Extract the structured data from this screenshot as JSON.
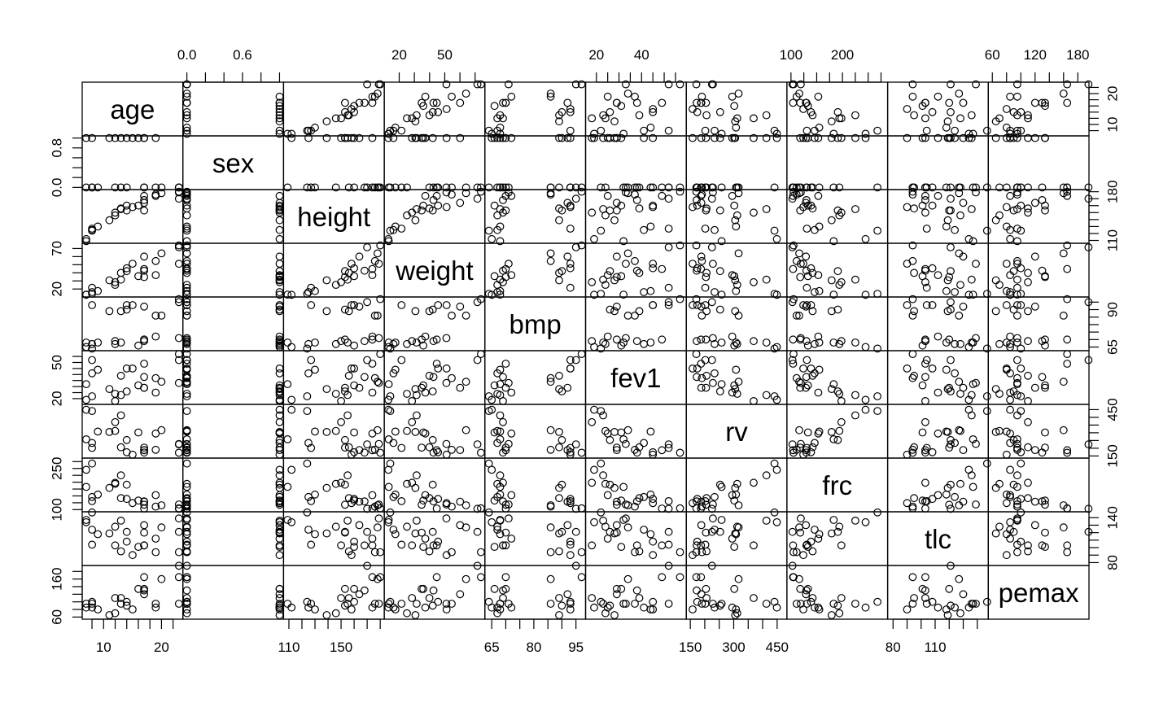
{
  "chart_data": {
    "type": "scatter",
    "layout": "scatterplot-matrix",
    "variables": [
      {
        "name": "age",
        "range": [
          7,
          23
        ],
        "ticks": [
          10,
          20
        ],
        "tick_labels": [
          "10",
          "20"
        ],
        "minor_ticks": [
          8,
          10,
          12,
          14,
          16,
          18,
          20,
          22
        ]
      },
      {
        "name": "sex",
        "range": [
          0,
          1
        ],
        "ticks": [
          0.0,
          0.6
        ],
        "tick_labels": [
          "0.0",
          "0.6"
        ],
        "left_ticks": [
          0.0,
          0.8
        ],
        "left_tick_labels": [
          "0.0",
          "0.8"
        ],
        "minor_ticks": [
          0,
          0.2,
          0.4,
          0.6,
          0.8,
          1.0
        ]
      },
      {
        "name": "height",
        "range": [
          109,
          180
        ],
        "ticks": [
          110,
          150
        ],
        "tick_labels": [
          "110",
          "150"
        ],
        "right_ticks": [
          110,
          180
        ],
        "right_tick_labels": [
          "110",
          "180"
        ],
        "minor_ticks": [
          110,
          120,
          130,
          140,
          150,
          160,
          170,
          180
        ]
      },
      {
        "name": "weight",
        "range": [
          12.8,
          73.8
        ],
        "ticks": [
          20,
          50
        ],
        "tick_labels": [
          "20",
          "50"
        ],
        "left_ticks": [
          20,
          70
        ],
        "left_tick_labels": [
          "20",
          "70"
        ],
        "minor_ticks": [
          20,
          30,
          40,
          50,
          60,
          70
        ]
      },
      {
        "name": "bmp",
        "range": [
          64,
          97
        ],
        "ticks": [
          65,
          80,
          95
        ],
        "tick_labels": [
          "65",
          "80",
          "95"
        ],
        "right_ticks": [
          65,
          90
        ],
        "right_tick_labels": [
          "65",
          "90"
        ],
        "minor_ticks": [
          65,
          70,
          75,
          80,
          85,
          90,
          95
        ]
      },
      {
        "name": "fev1",
        "range": [
          17,
          58
        ],
        "ticks": [
          20,
          40
        ],
        "tick_labels": [
          "20",
          "40"
        ],
        "left_ticks": [
          20,
          50
        ],
        "left_tick_labels": [
          "20",
          "50"
        ],
        "minor_ticks": [
          20,
          25,
          30,
          35,
          40,
          45,
          50,
          55
        ]
      },
      {
        "name": "rv",
        "range": [
          150,
          470
        ],
        "ticks": [
          150,
          300,
          450
        ],
        "tick_labels": [
          "150",
          "300",
          "450"
        ],
        "right_ticks": [
          150,
          450
        ],
        "right_tick_labels": [
          "150",
          "450"
        ],
        "minor_ticks": [
          150,
          200,
          250,
          300,
          350,
          400,
          450
        ]
      },
      {
        "name": "frc",
        "range": [
          100,
          280
        ],
        "ticks": [
          100,
          200
        ],
        "tick_labels": [
          "100",
          "200"
        ],
        "left_ticks": [
          100,
          250
        ],
        "left_tick_labels": [
          "100",
          "250"
        ],
        "minor_ticks": [
          100,
          125,
          150,
          175,
          200,
          225,
          250,
          275
        ]
      },
      {
        "name": "tlc",
        "range": [
          79,
          145
        ],
        "ticks": [
          80,
          110
        ],
        "tick_labels": [
          "80",
          "110"
        ],
        "right_ticks": [
          80,
          140
        ],
        "right_tick_labels": [
          "80",
          "140"
        ],
        "minor_ticks": [
          80,
          90,
          100,
          110,
          120,
          130,
          140
        ]
      },
      {
        "name": "pemax",
        "range": [
          60,
          190
        ],
        "ticks": [
          60,
          120,
          180
        ],
        "tick_labels": [
          "60",
          "120",
          "180"
        ],
        "left_ticks": [
          60,
          160
        ],
        "left_tick_labels": [
          "60",
          "160"
        ],
        "minor_ticks": [
          60,
          80,
          100,
          120,
          140,
          160,
          180
        ]
      }
    ],
    "tick_sides": {
      "top": [
        "sex",
        "weight",
        "fev1",
        "frc",
        "pemax"
      ],
      "bottom": [
        "age",
        "height",
        "bmp",
        "rv",
        "tlc"
      ],
      "left": [
        "sex",
        "weight",
        "fev1",
        "frc",
        "pemax"
      ],
      "right": [
        "age",
        "height",
        "bmp",
        "rv",
        "tlc"
      ]
    },
    "observations": [
      {
        "age": 7,
        "sex": 0,
        "height": 109,
        "weight": 13.1,
        "bmp": 68,
        "fev1": 32,
        "rv": 258,
        "frc": 183,
        "tlc": 137,
        "pemax": 95
      },
      {
        "age": 7,
        "sex": 1,
        "height": 112,
        "weight": 12.9,
        "bmp": 65,
        "fev1": 19,
        "rv": 449,
        "frc": 245,
        "tlc": 134,
        "pemax": 85
      },
      {
        "age": 8,
        "sex": 0,
        "height": 124,
        "weight": 14.1,
        "bmp": 64,
        "fev1": 22,
        "rv": 441,
        "frc": 268,
        "tlc": 147,
        "pemax": 100
      },
      {
        "age": 8,
        "sex": 1,
        "height": 125,
        "weight": 16.2,
        "bmp": 67,
        "fev1": 41,
        "rv": 234,
        "frc": 146,
        "tlc": 124,
        "pemax": 85
      },
      {
        "age": 8,
        "sex": 0,
        "height": 127,
        "weight": 21.5,
        "bmp": 93,
        "fev1": 52,
        "rv": 202,
        "frc": 131,
        "tlc": 104,
        "pemax": 95
      },
      {
        "age": 9,
        "sex": 0,
        "height": 130,
        "weight": 17.5,
        "bmp": 68,
        "fev1": 44,
        "rv": 308,
        "frc": 155,
        "tlc": 118,
        "pemax": 80
      },
      {
        "age": 11,
        "sex": 1,
        "height": 139,
        "weight": 30.7,
        "bmp": 89,
        "fev1": 28,
        "rv": 305,
        "frc": 179,
        "tlc": 119,
        "pemax": 65
      },
      {
        "age": 12,
        "sex": 1,
        "height": 150,
        "weight": 28.4,
        "bmp": 69,
        "fev1": 18,
        "rv": 369,
        "frc": 198,
        "tlc": 103,
        "pemax": 110
      },
      {
        "age": 12,
        "sex": 0,
        "height": 146,
        "weight": 25.1,
        "bmp": 67,
        "fev1": 24,
        "rv": 312,
        "frc": 194,
        "tlc": 128,
        "pemax": 70
      },
      {
        "age": 13,
        "sex": 1,
        "height": 155,
        "weight": 31.5,
        "bmp": 68,
        "fev1": 23,
        "rv": 413,
        "frc": 225,
        "tlc": 136,
        "pemax": 95
      },
      {
        "age": 13,
        "sex": 0,
        "height": 156,
        "weight": 39.9,
        "bmp": 89,
        "fev1": 39,
        "rv": 206,
        "frc": 142,
        "tlc": 95,
        "pemax": 110
      },
      {
        "age": 14,
        "sex": 1,
        "height": 153,
        "weight": 42.1,
        "bmp": 90,
        "fev1": 26,
        "rv": 253,
        "frc": 191,
        "tlc": 121,
        "pemax": 90
      },
      {
        "age": 14,
        "sex": 0,
        "height": 160,
        "weight": 45.6,
        "bmp": 93,
        "fev1": 45,
        "rv": 174,
        "frc": 139,
        "tlc": 108,
        "pemax": 100
      },
      {
        "age": 15,
        "sex": 1,
        "height": 158,
        "weight": 51.2,
        "bmp": 93,
        "fev1": 45,
        "rv": 158,
        "frc": 124,
        "tlc": 90,
        "pemax": 80
      },
      {
        "age": 16,
        "sex": 1,
        "height": 160,
        "weight": 35.9,
        "bmp": 66,
        "fev1": 31,
        "rv": 302,
        "frc": 133,
        "tlc": 101,
        "pemax": 134
      },
      {
        "age": 17,
        "sex": 1,
        "height": 153,
        "weight": 34.8,
        "bmp": 70,
        "fev1": 29,
        "rv": 204,
        "frc": 118,
        "tlc": 120,
        "pemax": 134
      },
      {
        "age": 17,
        "sex": 0,
        "height": 174,
        "weight": 44.7,
        "bmp": 70,
        "fev1": 49,
        "rv": 187,
        "frc": 104,
        "tlc": 103,
        "pemax": 165
      },
      {
        "age": 17,
        "sex": 1,
        "height": 164,
        "weight": 60.1,
        "bmp": 92,
        "fev1": 29,
        "rv": 188,
        "frc": 129,
        "tlc": 130,
        "pemax": 120
      },
      {
        "age": 17,
        "sex": 0,
        "height": 168,
        "weight": 42.6,
        "bmp": 69,
        "fev1": 38,
        "rv": 172,
        "frc": 130,
        "tlc": 103,
        "pemax": 130
      },
      {
        "age": 19,
        "sex": 1,
        "height": 174,
        "weight": 37.2,
        "bmp": 72,
        "fev1": 25,
        "rv": 295,
        "frc": 153,
        "tlc": 112,
        "pemax": 85
      },
      {
        "age": 19,
        "sex": 0,
        "height": 176,
        "weight": 54.6,
        "bmp": 86,
        "fev1": 37,
        "rv": 190,
        "frc": 111,
        "tlc": 94,
        "pemax": 95
      },
      {
        "age": 20,
        "sex": 0,
        "height": 178,
        "weight": 64.0,
        "bmp": 86,
        "fev1": 34,
        "rv": 317,
        "frc": 116,
        "tlc": 127,
        "pemax": 160
      },
      {
        "age": 23,
        "sex": 0,
        "height": 180,
        "weight": 73.8,
        "bmp": 97,
        "fev1": 57,
        "rv": 171,
        "frc": 105,
        "tlc": 94,
        "pemax": 165
      },
      {
        "age": 23,
        "sex": 0,
        "height": 179,
        "weight": 51.1,
        "bmp": 71,
        "fev1": 33,
        "rv": 228,
        "frc": 119,
        "tlc": 139,
        "pemax": 95
      },
      {
        "age": 23,
        "sex": 0,
        "height": 170,
        "weight": 71.5,
        "bmp": 95,
        "fev1": 52,
        "rv": 225,
        "frc": 103,
        "tlc": 121,
        "pemax": 195
      }
    ]
  }
}
